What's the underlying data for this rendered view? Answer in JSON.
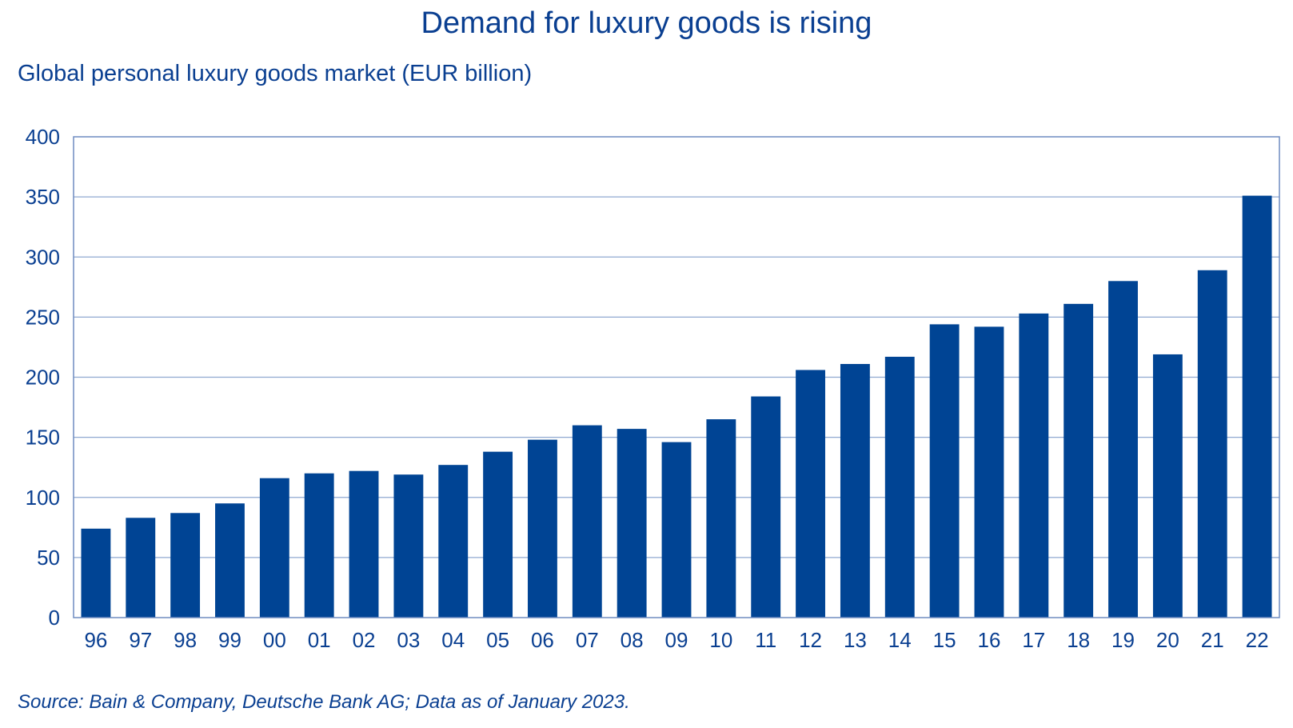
{
  "chart_data": {
    "type": "bar",
    "title": "Demand for luxury goods is rising",
    "subtitle": "Global personal luxury goods market (EUR billion)",
    "source": "Source: Bain & Company, Deutsche Bank AG; Data as of January 2023.",
    "xlabel": "",
    "ylabel": "",
    "ylim": [
      0,
      400
    ],
    "yticks": [
      "0",
      "50",
      "100",
      "150",
      "200",
      "250",
      "300",
      "350",
      "400"
    ],
    "grid": true,
    "categories": [
      "96",
      "97",
      "98",
      "99",
      "00",
      "01",
      "02",
      "03",
      "04",
      "05",
      "06",
      "07",
      "08",
      "09",
      "10",
      "11",
      "12",
      "13",
      "14",
      "15",
      "16",
      "17",
      "18",
      "19",
      "20",
      "21",
      "22"
    ],
    "values": [
      74,
      83,
      87,
      95,
      116,
      120,
      122,
      119,
      127,
      138,
      148,
      160,
      157,
      146,
      165,
      184,
      206,
      211,
      217,
      244,
      242,
      253,
      261,
      280,
      219,
      289,
      351
    ],
    "colors": {
      "bar": "#004494",
      "text": "#0a3f91",
      "grid": "#8fa8d0",
      "frame": "#6f8cc0"
    }
  }
}
